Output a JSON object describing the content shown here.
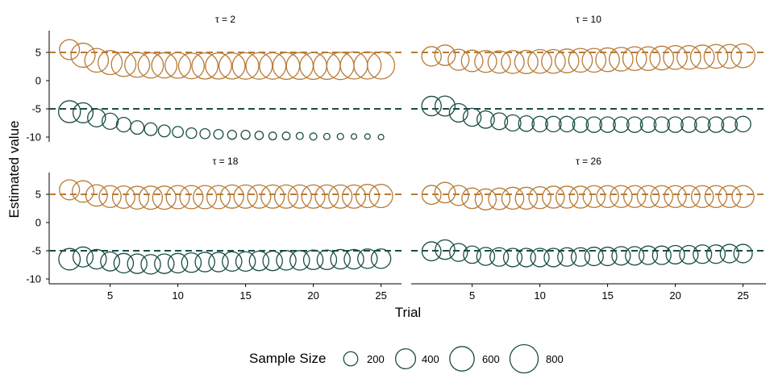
{
  "chart_data": {
    "type": "scatter",
    "xlabel": "Trial",
    "ylabel": "Estimated value",
    "x_ticks": [
      5,
      10,
      15,
      20,
      25
    ],
    "y_ticks": [
      5,
      0,
      -5,
      -10
    ],
    "y_tick_labels": [
      "5",
      "0",
      "-5",
      "-10"
    ],
    "xlim": [
      0.5,
      25.8
    ],
    "ylim": [
      -11,
      9
    ],
    "reference_lines": [
      5,
      -5
    ],
    "colors": {
      "upper": "#b87a35",
      "lower": "#1a4d45"
    },
    "legend": {
      "title": "Sample Size",
      "position": "bottom",
      "items": [
        {
          "label": "200",
          "value": 200
        },
        {
          "label": "400",
          "value": 400
        },
        {
          "label": "600",
          "value": 600
        },
        {
          "label": "800",
          "value": 800
        }
      ]
    },
    "panels": [
      {
        "title": "τ = 2",
        "x": [
          2,
          3,
          4,
          5,
          6,
          7,
          8,
          9,
          10,
          11,
          12,
          13,
          14,
          15,
          16,
          17,
          18,
          19,
          20,
          21,
          22,
          23,
          24,
          25
        ],
        "upper": [
          5.5,
          4.5,
          3.6,
          3.2,
          2.9,
          2.8,
          2.7,
          2.7,
          2.7,
          2.6,
          2.6,
          2.6,
          2.6,
          2.6,
          2.6,
          2.6,
          2.6,
          2.6,
          2.6,
          2.6,
          2.6,
          2.7,
          2.7,
          2.7
        ],
        "upper_size": [
          400,
          580,
          560,
          580,
          600,
          620,
          640,
          640,
          660,
          660,
          680,
          680,
          680,
          700,
          700,
          700,
          720,
          720,
          720,
          720,
          740,
          740,
          740,
          740
        ],
        "lower": [
          -5.5,
          -5.7,
          -6.6,
          -7.2,
          -7.8,
          -8.3,
          -8.6,
          -8.9,
          -9.1,
          -9.3,
          -9.4,
          -9.5,
          -9.6,
          -9.6,
          -9.7,
          -9.8,
          -9.8,
          -9.8,
          -9.9,
          -9.9,
          -9.9,
          -9.9,
          -9.9,
          -10.0
        ],
        "lower_size": [
          480,
          400,
          320,
          260,
          210,
          180,
          160,
          140,
          120,
          110,
          100,
          90,
          80,
          80,
          70,
          60,
          60,
          50,
          50,
          40,
          40,
          30,
          30,
          30
        ]
      },
      {
        "title": "τ = 10",
        "x": [
          2,
          3,
          4,
          5,
          6,
          7,
          8,
          9,
          10,
          11,
          12,
          13,
          14,
          15,
          16,
          17,
          18,
          19,
          20,
          21,
          22,
          23,
          24,
          25
        ],
        "upper": [
          4.3,
          4.5,
          3.7,
          3.5,
          3.4,
          3.3,
          3.3,
          3.3,
          3.4,
          3.4,
          3.5,
          3.6,
          3.6,
          3.7,
          3.8,
          3.9,
          3.9,
          4.0,
          4.1,
          4.1,
          4.2,
          4.3,
          4.3,
          4.4
        ],
        "upper_size": [
          380,
          420,
          440,
          460,
          480,
          500,
          520,
          540,
          560,
          560,
          560,
          560,
          560,
          560,
          560,
          560,
          560,
          560,
          560,
          560,
          560,
          560,
          560,
          560
        ],
        "lower": [
          -4.5,
          -4.5,
          -5.7,
          -6.5,
          -6.9,
          -7.2,
          -7.5,
          -7.6,
          -7.7,
          -7.7,
          -7.7,
          -7.8,
          -7.8,
          -7.8,
          -7.8,
          -7.8,
          -7.8,
          -7.8,
          -7.8,
          -7.8,
          -7.8,
          -7.8,
          -7.8,
          -7.7
        ],
        "lower_size": [
          380,
          400,
          340,
          320,
          300,
          280,
          260,
          240,
          240,
          240,
          240,
          240,
          240,
          240,
          240,
          240,
          240,
          240,
          240,
          240,
          240,
          240,
          240,
          240
        ]
      },
      {
        "title": "τ = 18",
        "x": [
          2,
          3,
          4,
          5,
          6,
          7,
          8,
          9,
          10,
          11,
          12,
          13,
          14,
          15,
          16,
          17,
          18,
          19,
          20,
          21,
          22,
          23,
          24,
          25
        ],
        "upper": [
          5.8,
          5.5,
          4.8,
          4.6,
          4.5,
          4.4,
          4.4,
          4.4,
          4.5,
          4.5,
          4.5,
          4.5,
          4.6,
          4.6,
          4.6,
          4.6,
          4.6,
          4.6,
          4.6,
          4.6,
          4.6,
          4.6,
          4.7,
          4.7
        ],
        "upper_size": [
          400,
          460,
          460,
          480,
          500,
          520,
          540,
          540,
          540,
          540,
          540,
          540,
          540,
          540,
          540,
          540,
          540,
          540,
          540,
          540,
          540,
          540,
          540,
          540
        ],
        "lower": [
          -6.5,
          -6.1,
          -6.5,
          -6.9,
          -7.2,
          -7.3,
          -7.4,
          -7.3,
          -7.2,
          -7.1,
          -7.0,
          -7.0,
          -6.9,
          -6.9,
          -6.8,
          -6.8,
          -6.7,
          -6.7,
          -6.6,
          -6.6,
          -6.5,
          -6.5,
          -6.4,
          -6.4
        ],
        "lower_size": [
          460,
          400,
          380,
          360,
          380,
          380,
          380,
          380,
          380,
          380,
          380,
          380,
          380,
          380,
          380,
          380,
          380,
          380,
          380,
          380,
          380,
          380,
          380,
          380
        ]
      },
      {
        "title": "τ = 26",
        "x": [
          2,
          3,
          4,
          5,
          6,
          7,
          8,
          9,
          10,
          11,
          12,
          13,
          14,
          15,
          16,
          17,
          18,
          19,
          20,
          21,
          22,
          23,
          24,
          25
        ],
        "upper": [
          4.9,
          5.3,
          4.8,
          4.3,
          4.1,
          4.2,
          4.3,
          4.3,
          4.4,
          4.5,
          4.5,
          4.5,
          4.6,
          4.6,
          4.6,
          4.6,
          4.6,
          4.6,
          4.6,
          4.6,
          4.6,
          4.6,
          4.6,
          4.6
        ],
        "upper_size": [
          360,
          420,
          400,
          420,
          440,
          460,
          480,
          480,
          480,
          480,
          480,
          480,
          480,
          480,
          480,
          480,
          480,
          480,
          480,
          480,
          480,
          480,
          480,
          480
        ],
        "lower": [
          -5.1,
          -4.8,
          -5.3,
          -5.7,
          -6.0,
          -6.1,
          -6.2,
          -6.2,
          -6.2,
          -6.2,
          -6.1,
          -6.1,
          -6.0,
          -6.0,
          -5.9,
          -5.9,
          -5.8,
          -5.8,
          -5.7,
          -5.7,
          -5.6,
          -5.6,
          -5.5,
          -5.5
        ],
        "lower_size": [
          360,
          380,
          320,
          300,
          320,
          340,
          340,
          340,
          340,
          340,
          340,
          340,
          340,
          340,
          340,
          340,
          340,
          340,
          340,
          340,
          340,
          340,
          340,
          340
        ]
      }
    ]
  }
}
